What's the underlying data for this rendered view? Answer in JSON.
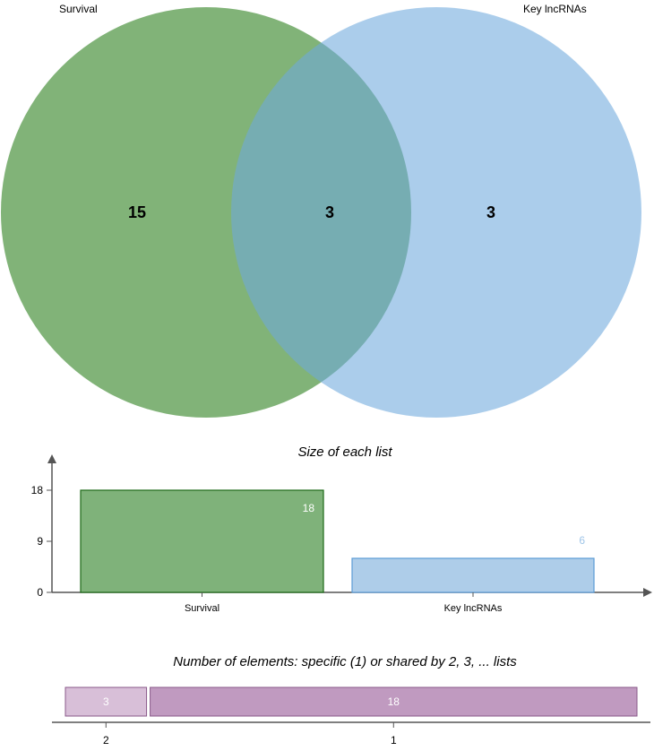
{
  "venn": {
    "type": "venn",
    "sets": [
      {
        "name": "Survival",
        "color": "#3d8b2f"
      },
      {
        "name": "Key lncRNAs",
        "color": "#6fa8dc"
      }
    ],
    "regions": [
      {
        "sets": [
          "Survival"
        ],
        "count": "15"
      },
      {
        "sets": [
          "Survival",
          "Key lncRNAs"
        ],
        "count": "3"
      },
      {
        "sets": [
          "Key lncRNAs"
        ],
        "count": "3"
      }
    ]
  },
  "chart_data": [
    {
      "type": "bar",
      "title": "Size of each list",
      "categories": [
        "Survival",
        "Key lncRNAs"
      ],
      "values": [
        18,
        6
      ],
      "yticks": [
        "0",
        "9",
        "18"
      ],
      "ylim": [
        0,
        22
      ],
      "fill_colors": [
        "#7fb27a",
        "#aecde9"
      ],
      "stroke_colors": [
        "#1d6a17",
        "#5b9bd5"
      ],
      "label_colors": [
        "#ffffff",
        "#9fc5e8"
      ]
    },
    {
      "type": "bar",
      "title": "Number of elements: specific (1) or shared by 2, 3, ... lists",
      "categories": [
        "2",
        "1"
      ],
      "values": [
        3,
        18
      ],
      "fill_colors": [
        "#d8bfd8",
        "#c09ac0"
      ],
      "stroke_colors": [
        "#8a5a8a",
        "#8a5a8a"
      ],
      "label_colors": [
        "#ffffff",
        "#ffffff"
      ]
    }
  ]
}
